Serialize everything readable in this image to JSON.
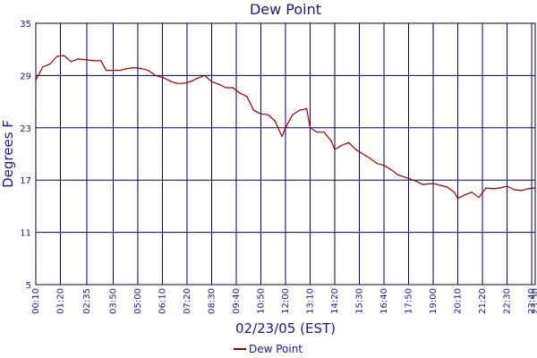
{
  "chart_data": {
    "type": "line",
    "title": "Dew Point",
    "xlabel": "02/23/05 (EST)",
    "ylabel": "Degrees F",
    "ylim": [
      5,
      35
    ],
    "y_ticks": [
      "35",
      "29",
      "23",
      "17",
      "11",
      "5"
    ],
    "x_ticks": [
      "00:10",
      "01:20",
      "02:35",
      "03:50",
      "05:00",
      "06:10",
      "07:20",
      "08:30",
      "09:40",
      "10:50",
      "12:00",
      "13:10",
      "14:20",
      "15:30",
      "16:40",
      "17:50",
      "19:00",
      "20:10",
      "21:20",
      "22:30",
      "23:40",
      "23:50"
    ],
    "grid": true,
    "legend_position": "bottom-center",
    "series": [
      {
        "name": "Dew Point",
        "color": "#9b0000",
        "x": [
          "00:10",
          "00:30",
          "00:50",
          "01:10",
          "01:30",
          "01:50",
          "02:10",
          "02:35",
          "02:55",
          "03:15",
          "03:30",
          "03:50",
          "04:10",
          "04:30",
          "04:50",
          "05:10",
          "05:30",
          "05:50",
          "06:10",
          "06:30",
          "06:50",
          "07:10",
          "07:30",
          "07:50",
          "08:10",
          "08:30",
          "08:50",
          "09:10",
          "09:30",
          "09:50",
          "10:10",
          "10:30",
          "10:50",
          "11:10",
          "11:30",
          "11:50",
          "12:00",
          "12:20",
          "12:40",
          "13:00",
          "13:10",
          "13:30",
          "13:50",
          "14:10",
          "14:20",
          "14:40",
          "15:00",
          "15:20",
          "15:40",
          "16:00",
          "16:20",
          "16:40",
          "17:00",
          "17:20",
          "17:50",
          "18:10",
          "18:30",
          "19:00",
          "19:20",
          "19:40",
          "20:00",
          "20:10",
          "20:30",
          "20:50",
          "21:10",
          "21:30",
          "21:50",
          "22:10",
          "22:30",
          "22:50",
          "23:10",
          "23:30",
          "23:50"
        ],
        "values": [
          28.5,
          30.0,
          30.3,
          31.2,
          31.3,
          30.6,
          30.9,
          30.8,
          30.7,
          30.7,
          29.6,
          29.6,
          29.6,
          29.8,
          29.9,
          29.8,
          29.6,
          29.0,
          28.8,
          28.4,
          28.1,
          28.1,
          28.3,
          28.7,
          29.0,
          28.3,
          28.0,
          27.6,
          27.6,
          27.0,
          26.6,
          25.0,
          24.6,
          24.5,
          23.8,
          22.0,
          23.0,
          24.5,
          25.0,
          25.2,
          23.0,
          22.5,
          22.5,
          21.5,
          20.5,
          21.0,
          21.3,
          20.5,
          20.0,
          19.5,
          18.9,
          18.7,
          18.2,
          17.6,
          17.2,
          16.9,
          16.5,
          16.6,
          16.4,
          16.2,
          15.6,
          14.9,
          15.3,
          15.6,
          15.0,
          16.1,
          16.0,
          16.1,
          16.3,
          15.9,
          15.8,
          16.0,
          16.1
        ]
      }
    ]
  }
}
